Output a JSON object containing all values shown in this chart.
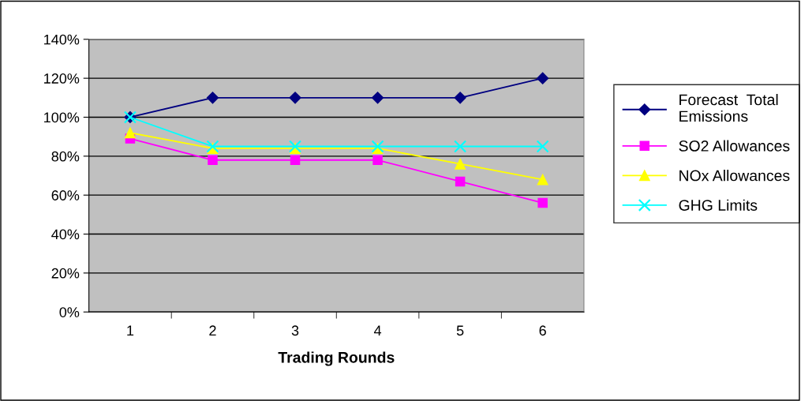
{
  "chart_data": {
    "type": "line",
    "xlabel": "Trading Rounds",
    "categories": [
      "1",
      "2",
      "3",
      "4",
      "5",
      "6"
    ],
    "series": [
      {
        "name": "Forecast  Total\nEmissions",
        "color": "#000080",
        "marker": "diamond",
        "values": [
          100,
          110,
          110,
          110,
          110,
          120
        ]
      },
      {
        "name": "SO2 Allowances",
        "color": "#ff00ff",
        "marker": "square",
        "values": [
          89,
          78,
          78,
          78,
          67,
          56
        ]
      },
      {
        "name": "NOx Allowances",
        "color": "#ffff00",
        "marker": "triangle",
        "values": [
          92,
          84,
          84,
          84,
          76,
          68
        ]
      },
      {
        "name": "GHG Limits",
        "color": "#00ffff",
        "marker": "cross",
        "values": [
          100,
          85,
          85,
          85,
          85,
          85
        ]
      }
    ],
    "ylim": [
      0,
      140
    ],
    "yticks": [
      {
        "value": 0,
        "label": "0%"
      },
      {
        "value": 20,
        "label": "20%"
      },
      {
        "value": 40,
        "label": "40%"
      },
      {
        "value": 60,
        "label": "60%"
      },
      {
        "value": 80,
        "label": "80%"
      },
      {
        "value": 100,
        "label": "100%"
      },
      {
        "value": 120,
        "label": "120%"
      },
      {
        "value": 140,
        "label": "140%"
      }
    ],
    "grid": "y",
    "legend": "right",
    "line_style": "solid"
  }
}
